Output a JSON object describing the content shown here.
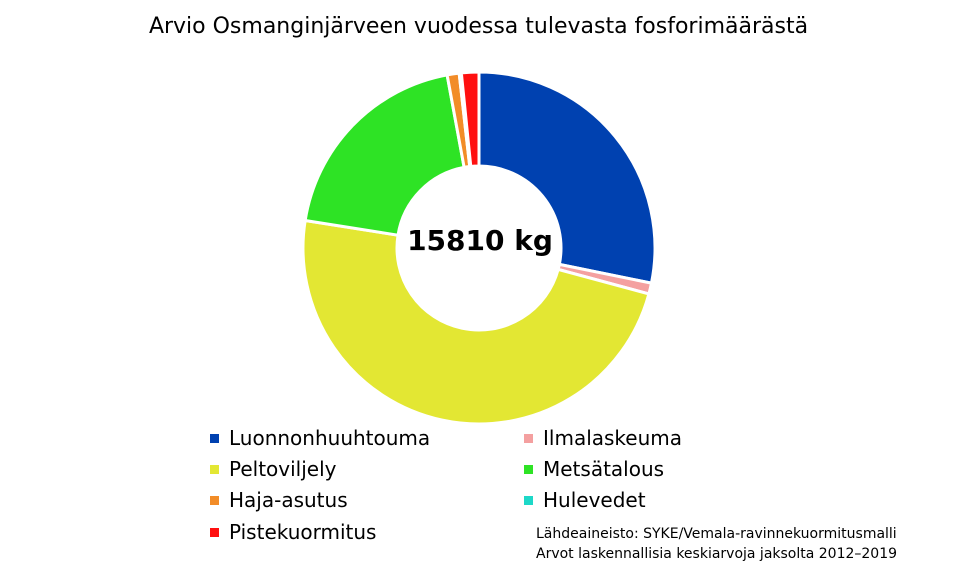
{
  "title": "Arvio Osmanginjärveen vuodessa tulevasta fosforimäärästä",
  "center_label": "15810 kg",
  "source": {
    "line1": "Lähdeaineisto: SYKE/Vemala-ravinnekuormitusmalli",
    "line2": "Arvot laskennallisia keskiarvoja jaksolta 2012–2019"
  },
  "chart_data": {
    "type": "pie",
    "donut": true,
    "total_label": "15810 kg",
    "title": "Arvio Osmanginjärveen vuodessa tulevasta fosforimäärästä",
    "slices": [
      {
        "label": "Luonnonhuuhtouma",
        "value": 28.2,
        "color": "#0041b0"
      },
      {
        "label": "Ilmalaskeuma",
        "value": 1.0,
        "color": "#f4a0a0"
      },
      {
        "label": "Peltoviljely",
        "value": 48.3,
        "color": "#e3e733"
      },
      {
        "label": "Metsätalous",
        "value": 19.6,
        "color": "#2ee325"
      },
      {
        "label": "Haja-asutus",
        "value": 1.1,
        "color": "#f28c28"
      },
      {
        "label": "Hulevedet",
        "value": 0.2,
        "color": "#1dd8c8"
      },
      {
        "label": "Pistekuormitus",
        "value": 1.6,
        "color": "#ff1010"
      }
    ],
    "legend_position": "bottom"
  }
}
